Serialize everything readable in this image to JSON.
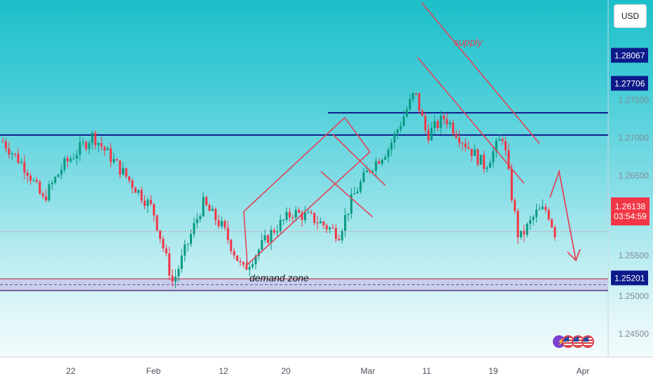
{
  "currency_label": "USD",
  "current_price": {
    "value": "1.26138",
    "countdown": "03:54:59",
    "color": "#f23645"
  },
  "colors": {
    "bull": "#089981",
    "bear": "#f23645",
    "level_line": "#0d1a8a",
    "zone": "#c8b6e6",
    "annotation": "#e0455a"
  },
  "chart_data": {
    "type": "candlestick",
    "x_ticks": [
      "22",
      "Feb",
      "12",
      "20",
      "Mar",
      "11",
      "19",
      "Apr"
    ],
    "y_ticks": [
      "1.27500",
      "1.27000",
      "1.26500",
      "1.25500",
      "1.25000",
      "1.24500"
    ],
    "y_range": [
      1.241,
      1.299
    ],
    "levels": [
      {
        "value": 1.28067,
        "label": "1.28067"
      },
      {
        "value": 1.27706,
        "label": "1.27706"
      },
      {
        "value": 1.25201,
        "label": "1.25201"
      }
    ],
    "demand_zone": [
      1.2518,
      1.2537
    ],
    "annotations": {
      "supply": "supply",
      "demand": "demand zone"
    },
    "bars": 180,
    "anchors": [
      [
        0,
        1.276
      ],
      [
        12,
        1.2715
      ],
      [
        20,
        1.2665
      ],
      [
        30,
        1.272
      ],
      [
        45,
        1.277
      ],
      [
        60,
        1.271
      ],
      [
        75,
        1.265
      ],
      [
        85,
        1.253
      ],
      [
        100,
        1.266
      ],
      [
        110,
        1.262
      ],
      [
        120,
        1.255
      ],
      [
        135,
        1.2615
      ],
      [
        145,
        1.2645
      ],
      [
        155,
        1.2635
      ],
      [
        168,
        1.261
      ],
      [
        175,
        1.267
      ],
      [
        183,
        1.2715
      ],
      [
        193,
        1.275
      ],
      [
        206,
        1.284
      ],
      [
        212,
        1.277
      ],
      [
        221,
        1.28
      ],
      [
        229,
        1.2765
      ],
      [
        241,
        1.272
      ],
      [
        250,
        1.277
      ],
      [
        254,
        1.268
      ],
      [
        258,
        1.26
      ],
      [
        267,
        1.2645
      ],
      [
        272,
        1.265
      ],
      [
        276,
        1.2612
      ]
    ]
  }
}
